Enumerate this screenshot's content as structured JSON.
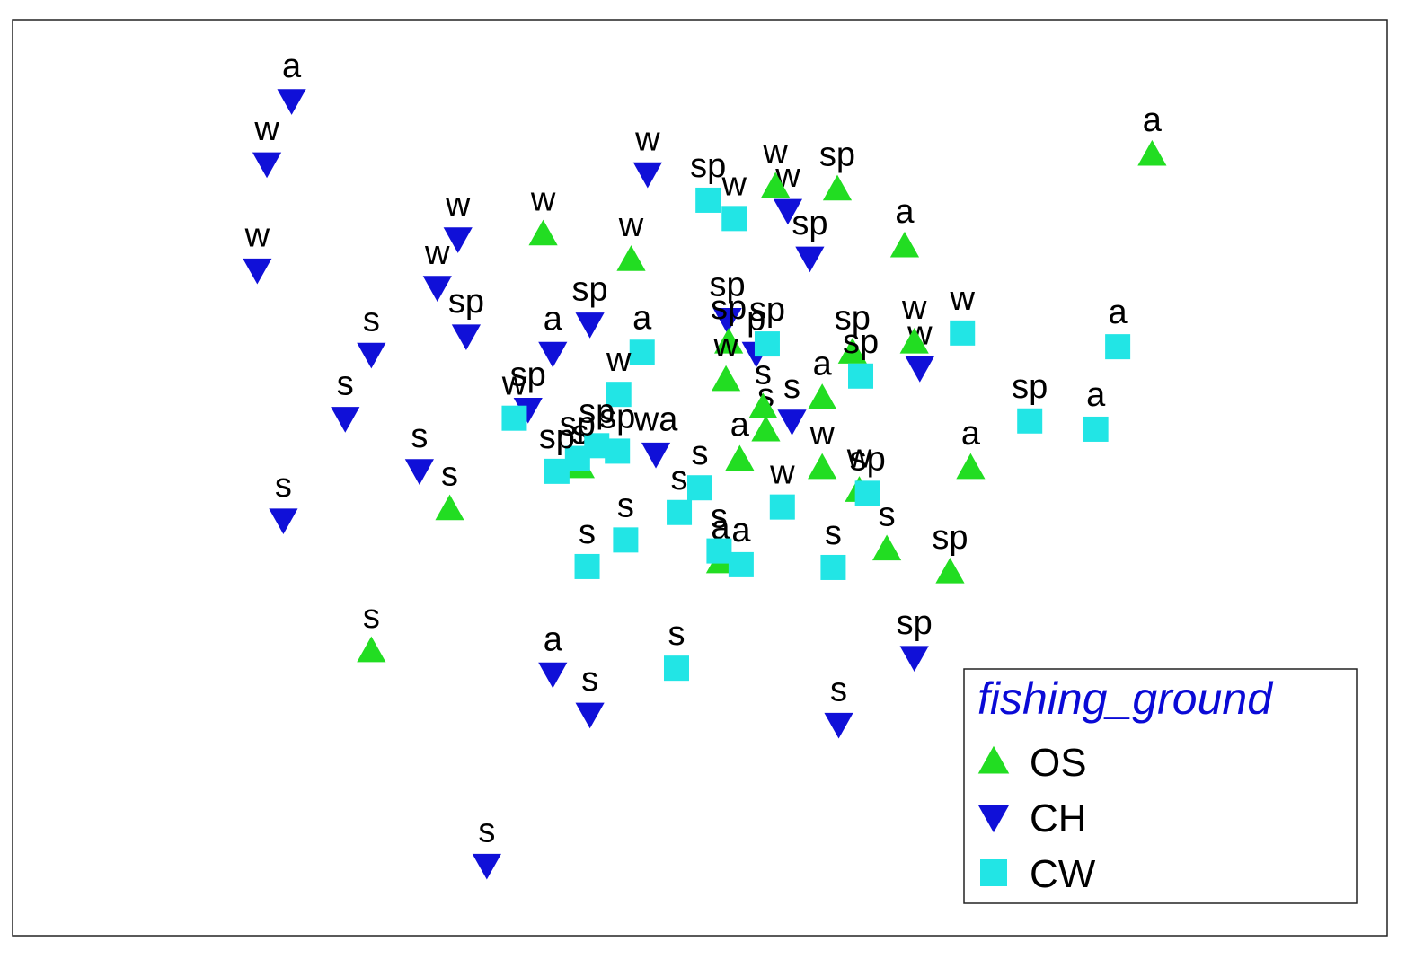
{
  "chart_data": {
    "type": "scatter",
    "title": "",
    "xlabel": "",
    "ylabel": "",
    "grid": false,
    "xlim": [
      0,
      1000
    ],
    "ylim": [
      0,
      1000
    ],
    "legend": {
      "title": "fishing_ground",
      "placement": "bottom-right",
      "entries": [
        {
          "key": "OS",
          "label": "OS"
        },
        {
          "key": "CH",
          "label": "CH"
        },
        {
          "key": "CW",
          "label": "CW"
        }
      ]
    },
    "colors": {
      "OS": "#22dd22",
      "CH": "#1010d8",
      "CW": "#22e5e5"
    },
    "markers": {
      "OS": "triangle-up",
      "CH": "triangle-down",
      "CW": "square"
    },
    "points": [
      {
        "g": "CH",
        "label": "a",
        "x": 203,
        "y": 912
      },
      {
        "g": "CH",
        "label": "w",
        "x": 185,
        "y": 843
      },
      {
        "g": "CH",
        "label": "w",
        "x": 178,
        "y": 727
      },
      {
        "g": "CH",
        "label": "w",
        "x": 324,
        "y": 761
      },
      {
        "g": "CH",
        "label": "w",
        "x": 309,
        "y": 708
      },
      {
        "g": "CH",
        "label": "w",
        "x": 462,
        "y": 832
      },
      {
        "g": "CH",
        "label": "s",
        "x": 261,
        "y": 635
      },
      {
        "g": "CH",
        "label": "s",
        "x": 242,
        "y": 565
      },
      {
        "g": "CH",
        "label": "s",
        "x": 197,
        "y": 454
      },
      {
        "g": "CH",
        "label": "s",
        "x": 296,
        "y": 508
      },
      {
        "g": "CH",
        "label": "sp",
        "x": 330,
        "y": 655
      },
      {
        "g": "CH",
        "label": "a",
        "x": 393,
        "y": 636
      },
      {
        "g": "CH",
        "label": "sp",
        "x": 420,
        "y": 668
      },
      {
        "g": "CH",
        "label": "sp",
        "x": 375,
        "y": 575
      },
      {
        "g": "CH",
        "label": "wa",
        "x": 468,
        "y": 526
      },
      {
        "g": "CH",
        "label": "w",
        "x": 564,
        "y": 792
      },
      {
        "g": "CH",
        "label": "sp",
        "x": 580,
        "y": 740
      },
      {
        "g": "CH",
        "label": "sp",
        "x": 520,
        "y": 673
      },
      {
        "g": "CH",
        "label": "s",
        "x": 567,
        "y": 562
      },
      {
        "g": "CH",
        "label": "p",
        "x": 541,
        "y": 636
      },
      {
        "g": "CH",
        "label": "w",
        "x": 660,
        "y": 620
      },
      {
        "g": "CH",
        "label": "sp",
        "x": 656,
        "y": 304
      },
      {
        "g": "CH",
        "label": "a",
        "x": 393,
        "y": 286
      },
      {
        "g": "CH",
        "label": "s",
        "x": 420,
        "y": 242
      },
      {
        "g": "CH",
        "label": "s",
        "x": 601,
        "y": 231
      },
      {
        "g": "CH",
        "label": "s",
        "x": 345,
        "y": 77
      },
      {
        "g": "OS",
        "label": "a",
        "x": 829,
        "y": 853
      },
      {
        "g": "OS",
        "label": "w",
        "x": 386,
        "y": 766
      },
      {
        "g": "OS",
        "label": "w",
        "x": 450,
        "y": 738
      },
      {
        "g": "OS",
        "label": "w",
        "x": 555,
        "y": 818
      },
      {
        "g": "OS",
        "label": "sp",
        "x": 600,
        "y": 815
      },
      {
        "g": "OS",
        "label": "a",
        "x": 649,
        "y": 753
      },
      {
        "g": "OS",
        "label": "sp",
        "x": 521,
        "y": 648
      },
      {
        "g": "OS",
        "label": "w",
        "x": 656,
        "y": 648
      },
      {
        "g": "OS",
        "label": "sp",
        "x": 611,
        "y": 637
      },
      {
        "g": "OS",
        "label": "w",
        "x": 519,
        "y": 607
      },
      {
        "g": "OS",
        "label": "s",
        "x": 548,
        "y": 552
      },
      {
        "g": "OS",
        "label": "s",
        "x": 546,
        "y": 577
      },
      {
        "g": "OS",
        "label": "a",
        "x": 589,
        "y": 587
      },
      {
        "g": "OS",
        "label": "s",
        "x": 413,
        "y": 512
      },
      {
        "g": "OS",
        "label": "w",
        "x": 589,
        "y": 511
      },
      {
        "g": "OS",
        "label": "s",
        "x": 318,
        "y": 466
      },
      {
        "g": "OS",
        "label": "a",
        "x": 697,
        "y": 511
      },
      {
        "g": "OS",
        "label": "w",
        "x": 616,
        "y": 486
      },
      {
        "g": "OS",
        "label": "s",
        "x": 636,
        "y": 422
      },
      {
        "g": "OS",
        "label": "a",
        "x": 515,
        "y": 408
      },
      {
        "g": "OS",
        "label": "sp",
        "x": 682,
        "y": 397
      },
      {
        "g": "OS",
        "label": "s",
        "x": 261,
        "y": 311
      },
      {
        "g": "OS",
        "label": "a",
        "x": 529,
        "y": 520
      },
      {
        "g": "CW",
        "label": "a",
        "x": 804,
        "y": 643
      },
      {
        "g": "CW",
        "label": "a",
        "x": 788,
        "y": 553
      },
      {
        "g": "CW",
        "label": "sp",
        "x": 740,
        "y": 562
      },
      {
        "g": "CW",
        "label": "w",
        "x": 691,
        "y": 658
      },
      {
        "g": "CW",
        "label": "sp",
        "x": 617,
        "y": 611
      },
      {
        "g": "CW",
        "label": "sp",
        "x": 549,
        "y": 646
      },
      {
        "g": "CW",
        "label": "sp",
        "x": 506,
        "y": 803
      },
      {
        "g": "CW",
        "label": "w",
        "x": 525,
        "y": 783
      },
      {
        "g": "CW",
        "label": "a",
        "x": 458,
        "y": 637
      },
      {
        "g": "CW",
        "label": "w",
        "x": 441,
        "y": 591
      },
      {
        "g": "CW",
        "label": "w",
        "x": 365,
        "y": 565
      },
      {
        "g": "CW",
        "label": "sp",
        "x": 425,
        "y": 535
      },
      {
        "g": "CW",
        "label": "sp",
        "x": 440,
        "y": 529
      },
      {
        "g": "CW",
        "label": "sp",
        "x": 411,
        "y": 521
      },
      {
        "g": "CW",
        "label": "sp",
        "x": 396,
        "y": 507
      },
      {
        "g": "CW",
        "label": "s",
        "x": 500,
        "y": 489
      },
      {
        "g": "CW",
        "label": "s",
        "x": 485,
        "y": 462
      },
      {
        "g": "CW",
        "label": "w",
        "x": 560,
        "y": 468
      },
      {
        "g": "CW",
        "label": "sp",
        "x": 622,
        "y": 483
      },
      {
        "g": "CW",
        "label": "s",
        "x": 446,
        "y": 432
      },
      {
        "g": "CW",
        "label": "s",
        "x": 418,
        "y": 403
      },
      {
        "g": "CW",
        "label": "s",
        "x": 514,
        "y": 420
      },
      {
        "g": "CW",
        "label": "a",
        "x": 530,
        "y": 405
      },
      {
        "g": "CW",
        "label": "s",
        "x": 597,
        "y": 402
      },
      {
        "g": "CW",
        "label": "s",
        "x": 483,
        "y": 292
      }
    ]
  }
}
